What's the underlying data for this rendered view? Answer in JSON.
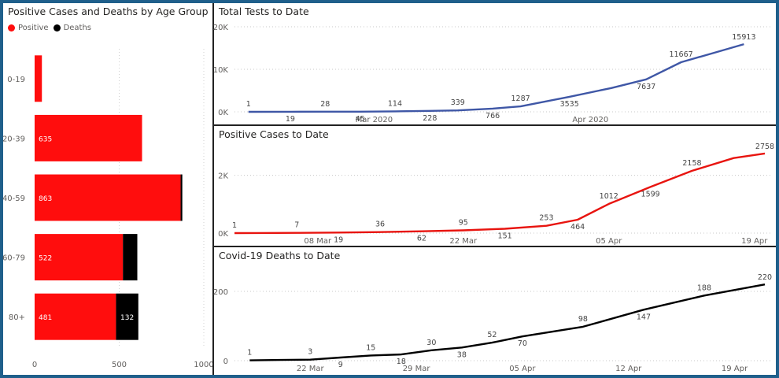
{
  "chart_data": [
    {
      "id": "age",
      "type": "bar",
      "orientation": "horizontal",
      "stacked": true,
      "title": "Positive Cases and Deaths by Age Group",
      "categories": [
        "0-19",
        "20-39",
        "40-59",
        "60-79",
        "80+"
      ],
      "series": [
        {
          "name": "Positive",
          "color": "#ff0d0d",
          "values": [
            43,
            635,
            863,
            522,
            481
          ],
          "labels": [
            "",
            "635",
            "863",
            "522",
            "481"
          ]
        },
        {
          "name": "Deaths",
          "color": "#000000",
          "values": [
            0,
            0,
            10,
            85,
            132
          ],
          "labels": [
            "",
            "",
            "",
            "",
            "132"
          ]
        }
      ],
      "xlim": [
        0,
        1000
      ],
      "xticks": [
        0,
        500,
        1000
      ],
      "xtick_labels": [
        "0",
        "500",
        "1000"
      ],
      "legend": "top-left",
      "grid": true
    },
    {
      "id": "tests",
      "type": "line",
      "title": "Total Tests to Date",
      "color": "#3f57a6",
      "x": [
        "2020-02-12",
        "2020-02-18",
        "2020-02-23",
        "2020-02-28",
        "2020-03-04",
        "2020-03-09",
        "2020-03-13",
        "2020-03-18",
        "2020-03-22",
        "2020-03-29",
        "2020-04-04",
        "2020-04-09",
        "2020-04-14",
        "2020-04-19",
        "2020-04-23"
      ],
      "y": [
        1,
        19,
        28,
        45,
        114,
        228,
        339,
        766,
        1287,
        3535,
        5600,
        7637,
        11667,
        14000,
        15913
      ],
      "point_labels": [
        "1",
        "19",
        "28",
        "45",
        "114",
        "228",
        "339",
        "766",
        "1287",
        "3535",
        "",
        "7637",
        "11667",
        "",
        "15913"
      ],
      "xlim": [
        "2020-02-10",
        "2020-04-26"
      ],
      "ylim": [
        0,
        20000
      ],
      "yticks": [
        0,
        10000,
        20000
      ],
      "ytick_labels": [
        "0K",
        "10K",
        "20K"
      ],
      "xticks": [
        "2020-03-01",
        "2020-04-01"
      ],
      "xtick_labels": [
        "Mar 2020",
        "Apr 2020"
      ],
      "grid": true
    },
    {
      "id": "positive",
      "type": "line",
      "title": "Positive Cases to Date",
      "color": "#e8140f",
      "x": [
        "2020-02-29",
        "2020-03-02",
        "2020-03-06",
        "2020-03-10",
        "2020-03-14",
        "2020-03-18",
        "2020-03-22",
        "2020-03-26",
        "2020-03-30",
        "2020-04-02",
        "2020-04-05",
        "2020-04-09",
        "2020-04-13",
        "2020-04-17",
        "2020-04-20"
      ],
      "y": [
        1,
        2,
        7,
        19,
        36,
        62,
        95,
        151,
        253,
        464,
        1012,
        1599,
        2158,
        2600,
        2758
      ],
      "point_labels": [
        "1",
        "",
        "7",
        "19",
        "36",
        "62",
        "95",
        "151",
        "253",
        "464",
        "1012",
        "1599",
        "2158",
        "",
        "2758"
      ],
      "xlim": [
        "2020-02-29",
        "2020-04-20"
      ],
      "ylim": [
        0,
        3000
      ],
      "yticks": [
        0,
        2000
      ],
      "ytick_labels": [
        "0K",
        "2K"
      ],
      "xticks": [
        "2020-03-08",
        "2020-03-22",
        "2020-04-05",
        "2020-04-19"
      ],
      "xtick_labels": [
        "08 Mar",
        "22 Mar",
        "05 Apr",
        "19 Apr"
      ],
      "grid": true
    },
    {
      "id": "deaths",
      "type": "line",
      "title": "Covid-19 Deaths to Date",
      "color": "#000000",
      "x": [
        "2020-03-18",
        "2020-03-20",
        "2020-03-22",
        "2020-03-24",
        "2020-03-26",
        "2020-03-28",
        "2020-03-30",
        "2020-04-01",
        "2020-04-03",
        "2020-04-05",
        "2020-04-09",
        "2020-04-13",
        "2020-04-17",
        "2020-04-21"
      ],
      "y": [
        1,
        2,
        3,
        9,
        15,
        18,
        30,
        38,
        52,
        70,
        98,
        147,
        188,
        220
      ],
      "point_labels": [
        "1",
        "",
        "3",
        "9",
        "15",
        "18",
        "30",
        "38",
        "52",
        "70",
        "98",
        "147",
        "188",
        "220"
      ],
      "xlim": [
        "2020-03-17",
        "2020-04-21"
      ],
      "ylim": [
        0,
        250
      ],
      "yticks": [
        0,
        200
      ],
      "ytick_labels": [
        "0",
        "200"
      ],
      "xticks": [
        "2020-03-22",
        "2020-03-29",
        "2020-04-05",
        "2020-04-12",
        "2020-04-19"
      ],
      "xtick_labels": [
        "22 Mar",
        "29 Mar",
        "05 Apr",
        "12 Apr",
        "19 Apr"
      ],
      "grid": true
    }
  ]
}
